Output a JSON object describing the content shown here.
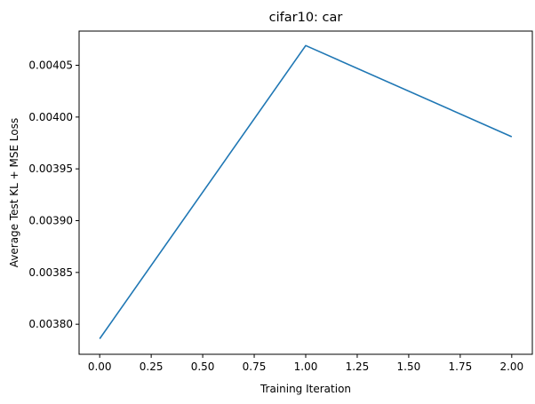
{
  "chart_data": {
    "type": "line",
    "title": "cifar10: car",
    "xlabel": "Training Iteration",
    "ylabel": "Average Test KL + MSE Loss",
    "x": [
      0,
      1,
      2
    ],
    "series": [
      {
        "values": [
          0.003786,
          0.004069,
          0.003981
        ],
        "color": "#1f77b4"
      }
    ],
    "xlim": [
      -0.1,
      2.1
    ],
    "ylim": [
      0.003771,
      0.004083
    ],
    "xticks": [
      0.0,
      0.25,
      0.5,
      0.75,
      1.0,
      1.25,
      1.5,
      1.75,
      2.0
    ],
    "xtick_labels": [
      "0.00",
      "0.25",
      "0.50",
      "0.75",
      "1.00",
      "1.25",
      "1.50",
      "1.75",
      "2.00"
    ],
    "yticks": [
      0.0038,
      0.00385,
      0.0039,
      0.00395,
      0.004,
      0.00405
    ],
    "ytick_labels": [
      "0.00380",
      "0.00385",
      "0.00390",
      "0.00395",
      "0.00400",
      "0.00405"
    ],
    "grid": false,
    "legend": "none"
  }
}
